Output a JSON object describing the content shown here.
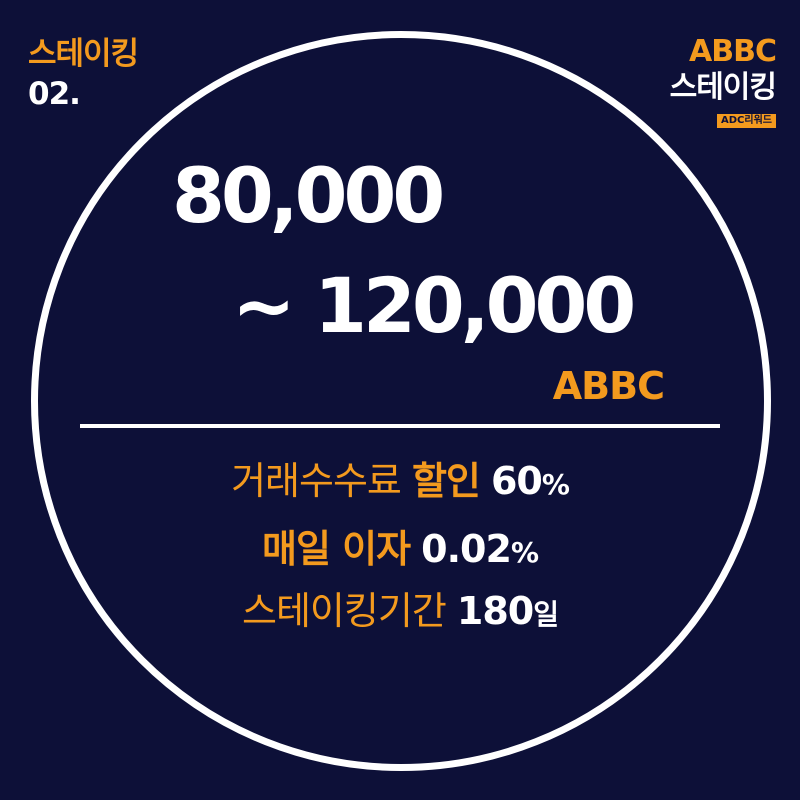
{
  "corner_left": {
    "title": "스테이킹",
    "number": "02."
  },
  "corner_right": {
    "brand": "ABBC",
    "title": "스테이킹",
    "tag": "ADC리워드"
  },
  "amount": {
    "min": "80,000",
    "max": "~ 120,000",
    "token": "ABBC"
  },
  "details": {
    "fee": {
      "label": "거래수수료",
      "highlight": "할인",
      "value": "60",
      "unit": "%"
    },
    "interest": {
      "label": "매일 이자",
      "value": "0.02",
      "unit": "%"
    },
    "period": {
      "label": "스테이킹기간",
      "value": "180",
      "unit": "일"
    }
  },
  "colors": {
    "background": "#0d1038",
    "accent": "#f39a1e",
    "text": "#ffffff"
  }
}
